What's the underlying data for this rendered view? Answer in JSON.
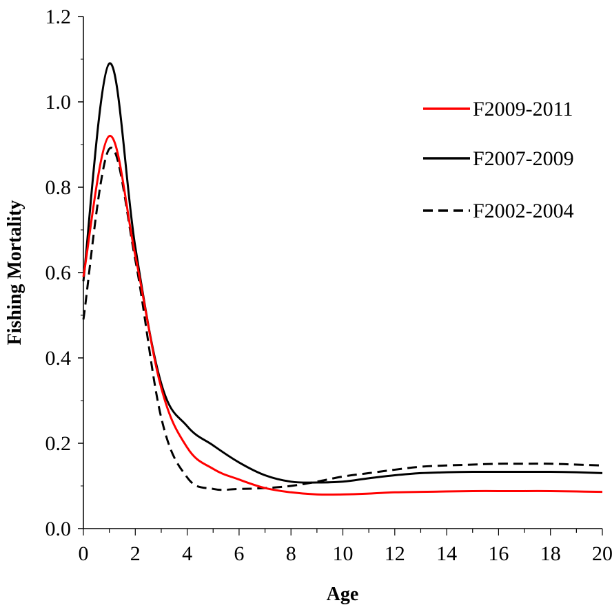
{
  "chart_data": {
    "type": "line",
    "title": "",
    "xlabel": "Age",
    "ylabel": "Fishing Mortality",
    "xlim": [
      0,
      20
    ],
    "ylim": [
      0,
      1.2
    ],
    "x_ticks": [
      "0",
      "2",
      "4",
      "6",
      "8",
      "10",
      "12",
      "14",
      "16",
      "18",
      "20"
    ],
    "y_ticks": [
      "0.0",
      "0.2",
      "0.4",
      "0.6",
      "0.8",
      "1.0",
      "1.2"
    ],
    "grid": false,
    "legend_position": "top-right",
    "x": [
      0,
      1,
      2,
      3,
      4,
      5,
      6,
      7,
      8,
      9,
      10,
      11,
      12,
      13,
      14,
      15,
      16,
      17,
      18,
      19,
      20
    ],
    "series": [
      {
        "name": "F2009-2011",
        "color": "#ff0000",
        "dash": "solid",
        "values": [
          0.59,
          0.92,
          0.64,
          0.33,
          0.19,
          0.14,
          0.115,
          0.095,
          0.085,
          0.08,
          0.08,
          0.082,
          0.085,
          0.086,
          0.087,
          0.088,
          0.088,
          0.088,
          0.088,
          0.087,
          0.086
        ]
      },
      {
        "name": "F2007-2009",
        "color": "#000000",
        "dash": "solid",
        "values": [
          0.58,
          1.09,
          0.66,
          0.34,
          0.24,
          0.195,
          0.155,
          0.125,
          0.11,
          0.108,
          0.11,
          0.118,
          0.125,
          0.13,
          0.132,
          0.133,
          0.133,
          0.133,
          0.133,
          0.132,
          0.13
        ]
      },
      {
        "name": "F2002-2004",
        "color": "#000000",
        "dash": "dashed",
        "values": [
          0.49,
          0.89,
          0.63,
          0.26,
          0.12,
          0.093,
          0.093,
          0.095,
          0.1,
          0.11,
          0.122,
          0.13,
          0.138,
          0.145,
          0.148,
          0.15,
          0.152,
          0.152,
          0.152,
          0.15,
          0.148
        ]
      }
    ]
  }
}
